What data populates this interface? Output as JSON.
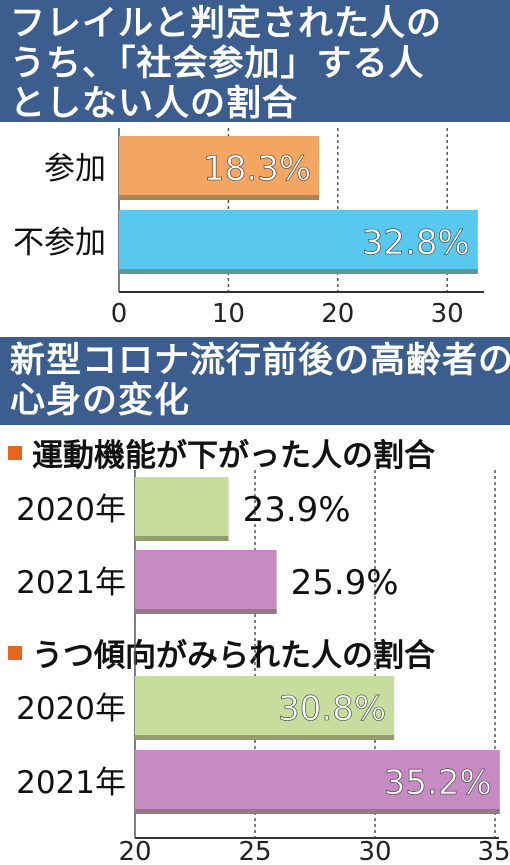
{
  "chart_data": [
    {
      "type": "bar",
      "title": "フレイルと判定された人のうち、「社会参加」する人としない人の割合",
      "categories": [
        "参加",
        "不参加"
      ],
      "values": [
        18.3,
        32.8
      ],
      "value_labels": [
        "18.3%",
        "32.8%"
      ],
      "colors": [
        "#f2a661",
        "#59c8ee"
      ],
      "xlim": [
        0,
        33
      ],
      "xticks": [
        0,
        10,
        20,
        30
      ],
      "xlabel": "",
      "ylabel": "",
      "grid": true,
      "legend": "none"
    },
    {
      "type": "bar",
      "title": "新型コロナ流行前後の高齢者の心身の変化",
      "xlim": [
        20,
        35
      ],
      "xticks": [
        20,
        25,
        30,
        35
      ],
      "xlabel": "",
      "ylabel": "",
      "grid": true,
      "legend": "none",
      "panels": [
        {
          "subtitle": "運動機能が下がった人の割合",
          "categories": [
            "2020年",
            "2021年"
          ],
          "values": [
            23.9,
            25.9
          ],
          "value_labels": [
            "23.9%",
            "25.9%"
          ],
          "colors": [
            "#c6dd9e",
            "#c78bc4"
          ]
        },
        {
          "subtitle": "うつ傾向がみられた人の割合",
          "categories": [
            "2020年",
            "2021年"
          ],
          "values": [
            30.8,
            35.2
          ],
          "value_labels": [
            "30.8%",
            "35.2%"
          ],
          "colors": [
            "#c6dd9e",
            "#c78bc4"
          ]
        }
      ]
    }
  ]
}
